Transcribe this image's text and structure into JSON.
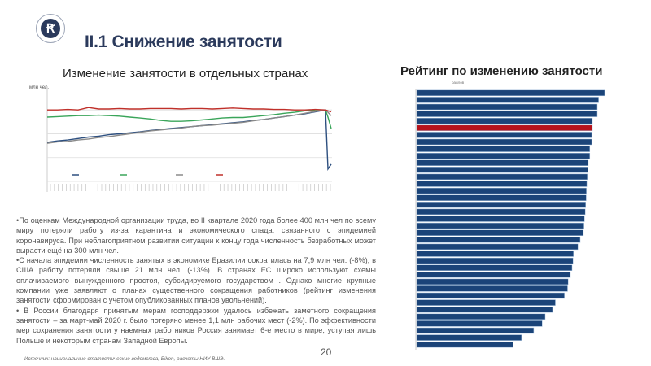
{
  "header": {
    "title": "II.1 Снижение занятости",
    "page_number": "20"
  },
  "text": {
    "bullets": [
      "•По оценкам Международной организации труда, во II квартале 2020 года более 400 млн чел по всему миру потеряли работу из-за карантина и экономического спада, связанного с эпидемией коронавируса. При неблагоприятном развитии ситуации к концу года численность безработных может вырасти ещё на 300 млн чел.",
      "•С начала эпидемии численность занятых в экономике Бразилии сократилась на 7,9 млн чел. (-8%), в США работу потеряли свыше 21 млн чел. (-13%). В странах ЕС широко используют схемы оплачиваемого вынужденного простоя, субсидируемого государством . Однако многие крупные компании уже заявляют о планах существенного сокращения работников (рейтинг изменения занятости сформирован с учетом опубликованных планов увольнений).",
      "• В России благодаря принятым мерам господдержки удалось избежать заметного сокращения занятости – за март-май 2020 г. было потеряно менее 1,1 млн рабочих мест (-2%). По эффективности мер сохранения занятости у наемных работников  Россия занимает 6-е место в мире, уступая лишь Польше и некоторым странам Западной Европы."
    ],
    "source": "Источник: национальные статистические ведомства, Eikon, расчеты НИУ ВШЭ."
  },
  "chart_data": [
    {
      "type": "line",
      "title": "Изменение занятости в отдельных странах",
      "ylabel": "млн чел.",
      "ylim": [
        85,
        104.3
      ],
      "gridlines": [
        85,
        90,
        95,
        100
      ],
      "series": [
        {
          "name": "",
          "color": "#2d4f7f",
          "values": [
            93.2,
            93.5,
            93.7,
            94.0,
            94.3,
            94.5,
            94.8,
            95.0,
            95.2,
            95.4,
            95.7,
            95.9,
            96.1,
            96.3,
            96.5,
            96.7,
            96.9,
            97.1,
            97.3,
            97.5,
            97.8,
            98.0,
            98.3,
            98.6,
            98.9,
            99.2,
            99.6,
            100,
            87.6,
            88.6
          ]
        },
        {
          "name": "",
          "color": "#3aa55a",
          "values": [
            98.5,
            98.6,
            98.7,
            98.8,
            98.8,
            98.9,
            98.8,
            98.7,
            98.5,
            98.3,
            98.1,
            97.8,
            97.6,
            97.6,
            97.7,
            97.9,
            98.1,
            98.3,
            98.4,
            98.4,
            98.6,
            98.8,
            99.0,
            99.3,
            99.5,
            99.8,
            100,
            100,
            98.5,
            96.1
          ]
        },
        {
          "name": "",
          "color": "#8a8a8a",
          "values": [
            93.0,
            93.3,
            93.4,
            93.7,
            93.9,
            94.2,
            94.4,
            94.7,
            95.0,
            95.3,
            95.6,
            95.8,
            96.0,
            96.2,
            96.5,
            96.7,
            96.8,
            97.0,
            97.2,
            97.4,
            97.7,
            98.0,
            98.3,
            98.6,
            98.9,
            99.3,
            99.7,
            100,
            99.5,
            98.8
          ]
        },
        {
          "name": "",
          "color": "#c0302a",
          "values": [
            100,
            100,
            100.1,
            100,
            100.5,
            100.2,
            100.2,
            100.3,
            100.2,
            100.2,
            100.3,
            100.3,
            100.3,
            100.2,
            100.3,
            100.3,
            100.2,
            100.3,
            100.4,
            100.3,
            100.2,
            100.2,
            100.1,
            100.1,
            100,
            100,
            100.1,
            100,
            99.8,
            99.6
          ]
        }
      ]
    },
    {
      "type": "bar",
      "orientation": "horizontal",
      "title": "Рейтинг по изменению занятости",
      "xlabel": "баллов",
      "highlight_index": 5,
      "colors": {
        "bar": "#1b4479",
        "highlight": "#b5121b"
      },
      "values": [
        100,
        96.8,
        96.1,
        96.1,
        93.5,
        93.5,
        93.1,
        93.1,
        92.1,
        92.1,
        91.3,
        91.2,
        90.8,
        90.5,
        90.3,
        90.2,
        89.9,
        89.7,
        89.3,
        89.0,
        88.7,
        87.0,
        85.8,
        83.4,
        83.2,
        82.7,
        81.8,
        80.6,
        80.3,
        78.6,
        73.8,
        72.3,
        68.4,
        66.8,
        62.3,
        55.8,
        51.4
      ],
      "xlim": [
        0,
        100
      ]
    }
  ]
}
